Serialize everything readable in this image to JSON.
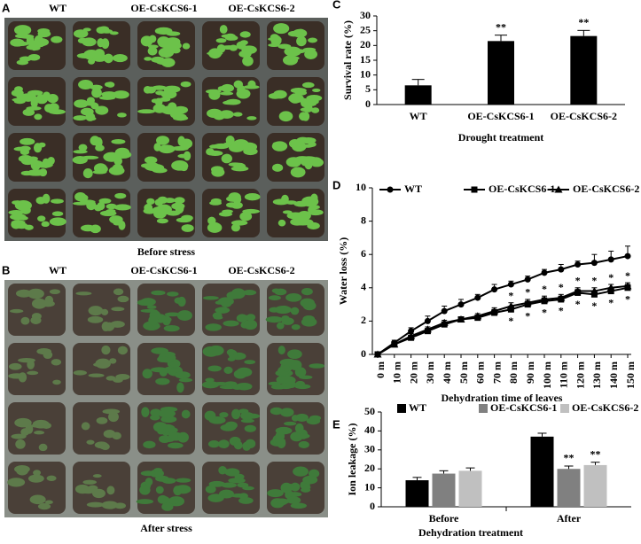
{
  "photos": [
    {
      "panel": "A",
      "labels": [
        "WT",
        "OE-CsKCS6-1",
        "OE-CsKCS6-2"
      ],
      "caption": "Before stress"
    },
    {
      "panel": "B",
      "labels": [
        "WT",
        "OE-CsKCS6-1",
        "OE-CsKCS6-2"
      ],
      "caption": "After stress"
    }
  ],
  "chart_data": [
    {
      "type": "bar",
      "panel": "C",
      "categories": [
        "WT",
        "OE-CsKCS6-1",
        "OE-CsKCS6-2"
      ],
      "values": [
        6.5,
        21.5,
        23.2
      ],
      "errors": [
        2.0,
        2.0,
        1.9
      ],
      "significance": [
        null,
        "**",
        "**"
      ],
      "color": "#000000",
      "ylabel": "Survival rate (%)",
      "xlabel": "Drought treatment",
      "ylim": [
        0,
        30
      ],
      "yticks": [
        0,
        5,
        10,
        15,
        20,
        25,
        30
      ]
    },
    {
      "type": "line",
      "panel": "D",
      "categories": [
        "0 m",
        "10 m",
        "20 m",
        "30 m",
        "40 m",
        "50 m",
        "60 m",
        "70 m",
        "80 m",
        "90 m",
        "100 m",
        "110 m",
        "120 m",
        "130 m",
        "140 m",
        "150 m"
      ],
      "series": [
        {
          "name": "WT",
          "color": "#000000",
          "marker": "circle",
          "values": [
            0,
            0.7,
            1.4,
            2.0,
            2.6,
            3.0,
            3.4,
            3.9,
            4.2,
            4.5,
            4.9,
            5.1,
            5.4,
            5.5,
            5.7,
            5.9
          ],
          "errors": [
            0.1,
            0.15,
            0.2,
            0.3,
            0.3,
            0.3,
            0.2,
            0.3,
            0.2,
            0.2,
            0.2,
            0.3,
            0.2,
            0.5,
            0.5,
            0.6
          ]
        },
        {
          "name": "OE-CsKCS6-1",
          "color": "#000000",
          "marker": "square",
          "values": [
            0,
            0.6,
            1.0,
            1.4,
            1.8,
            2.1,
            2.2,
            2.5,
            2.7,
            3.0,
            3.2,
            3.3,
            3.7,
            3.6,
            3.8,
            4.0
          ],
          "errors": [
            0.1,
            0.1,
            0.15,
            0.15,
            0.15,
            0.15,
            0.15,
            0.2,
            0.2,
            0.2,
            0.2,
            0.2,
            0.2,
            0.2,
            0.2,
            0.2
          ],
          "significance": [
            null,
            null,
            null,
            null,
            null,
            null,
            null,
            null,
            "*",
            "*",
            "*",
            "*",
            "*",
            "*",
            "*",
            "*"
          ]
        },
        {
          "name": "OE-CsKCS6-2",
          "color": "#000000",
          "marker": "triangle",
          "values": [
            0,
            0.6,
            1.1,
            1.5,
            1.9,
            2.1,
            2.3,
            2.6,
            2.9,
            3.1,
            3.3,
            3.4,
            3.8,
            3.8,
            4.0,
            4.1
          ],
          "errors": [
            0.1,
            0.1,
            0.15,
            0.15,
            0.15,
            0.15,
            0.15,
            0.2,
            0.2,
            0.2,
            0.2,
            0.2,
            0.2,
            0.2,
            0.2,
            0.2
          ],
          "significance": [
            null,
            null,
            null,
            null,
            null,
            null,
            null,
            null,
            "*",
            "*",
            "*",
            "*",
            "*",
            "*",
            "*",
            "*"
          ]
        }
      ],
      "ylabel": "Water loss (%)",
      "xlabel": "Dehydration time of leaves",
      "ylim": [
        0,
        10
      ],
      "yticks": [
        0,
        2,
        4,
        6,
        8,
        10
      ]
    },
    {
      "type": "grouped_bar",
      "panel": "E",
      "categories": [
        "Before",
        "After"
      ],
      "series": [
        {
          "name": "WT",
          "color": "#000000",
          "values": [
            14,
            37
          ],
          "errors": [
            1.5,
            1.8
          ]
        },
        {
          "name": "OE-CsKCS6-1",
          "color": "#808080",
          "values": [
            17.5,
            20
          ],
          "errors": [
            1.5,
            1.5
          ],
          "significance": [
            null,
            "**"
          ]
        },
        {
          "name": "OE-CsKCS6-2",
          "color": "#c0c0c0",
          "values": [
            19,
            22
          ],
          "errors": [
            1.5,
            1.5
          ],
          "significance": [
            null,
            "**"
          ]
        }
      ],
      "ylabel": "Ion leakage (%)",
      "xlabel": "Dehydration treatment",
      "ylim": [
        0,
        50
      ],
      "yticks": [
        0,
        10,
        20,
        30,
        40,
        50
      ]
    }
  ]
}
